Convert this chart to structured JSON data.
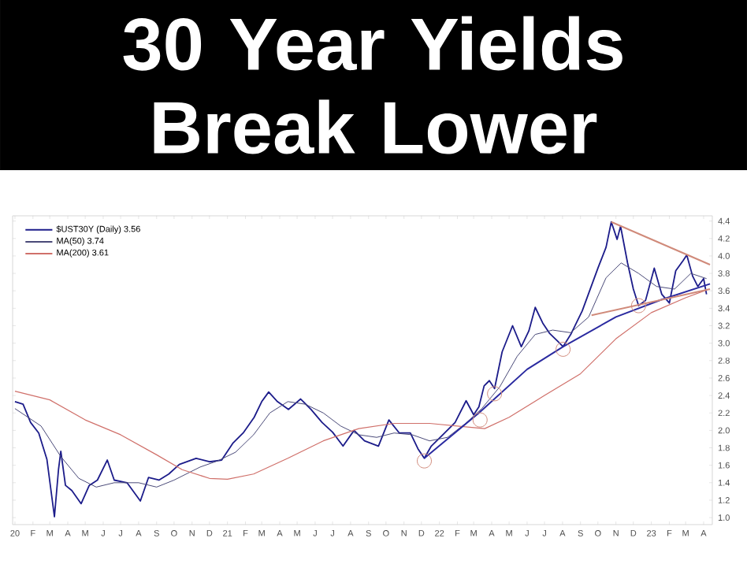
{
  "chart_data": {
    "type": "line",
    "title": "30 Year Yields Break Lower",
    "xlim": [
      "2019-12-28",
      "2023-04-16"
    ],
    "ylim": [
      0.92,
      4.46
    ],
    "xticks": [
      {
        "value": "2020-01-01",
        "label": "20"
      },
      {
        "value": "2020-02-01",
        "label": "F"
      },
      {
        "value": "2020-03-01",
        "label": "M"
      },
      {
        "value": "2020-04-01",
        "label": "A"
      },
      {
        "value": "2020-05-01",
        "label": "M"
      },
      {
        "value": "2020-06-01",
        "label": "J"
      },
      {
        "value": "2020-07-01",
        "label": "J"
      },
      {
        "value": "2020-08-01",
        "label": "A"
      },
      {
        "value": "2020-09-01",
        "label": "S"
      },
      {
        "value": "2020-10-01",
        "label": "O"
      },
      {
        "value": "2020-11-01",
        "label": "N"
      },
      {
        "value": "2020-12-01",
        "label": "D"
      },
      {
        "value": "2021-01-01",
        "label": "21"
      },
      {
        "value": "2021-02-01",
        "label": "F"
      },
      {
        "value": "2021-03-01",
        "label": "M"
      },
      {
        "value": "2021-04-01",
        "label": "A"
      },
      {
        "value": "2021-05-01",
        "label": "M"
      },
      {
        "value": "2021-06-01",
        "label": "J"
      },
      {
        "value": "2021-07-01",
        "label": "J"
      },
      {
        "value": "2021-08-01",
        "label": "A"
      },
      {
        "value": "2021-09-01",
        "label": "S"
      },
      {
        "value": "2021-10-01",
        "label": "O"
      },
      {
        "value": "2021-11-01",
        "label": "N"
      },
      {
        "value": "2021-12-01",
        "label": "D"
      },
      {
        "value": "2022-01-01",
        "label": "22"
      },
      {
        "value": "2022-02-01",
        "label": "F"
      },
      {
        "value": "2022-03-01",
        "label": "M"
      },
      {
        "value": "2022-04-01",
        "label": "A"
      },
      {
        "value": "2022-05-01",
        "label": "M"
      },
      {
        "value": "2022-06-01",
        "label": "J"
      },
      {
        "value": "2022-07-01",
        "label": "J"
      },
      {
        "value": "2022-08-01",
        "label": "A"
      },
      {
        "value": "2022-09-01",
        "label": "S"
      },
      {
        "value": "2022-10-01",
        "label": "O"
      },
      {
        "value": "2022-11-01",
        "label": "N"
      },
      {
        "value": "2022-12-01",
        "label": "D"
      },
      {
        "value": "2023-01-01",
        "label": "23"
      },
      {
        "value": "2023-02-01",
        "label": "F"
      },
      {
        "value": "2023-03-01",
        "label": "M"
      },
      {
        "value": "2023-04-01",
        "label": "A"
      }
    ],
    "yticks": [
      {
        "value": 1,
        "label": "1.0"
      },
      1.2,
      1.4,
      1.6,
      1.8,
      {
        "value": 2,
        "label": "2.0"
      },
      2.2,
      2.4,
      2.6,
      2.8,
      {
        "value": 3,
        "label": "3.0"
      },
      3.2,
      3.4,
      3.6,
      3.8,
      {
        "value": 4,
        "label": "4.0"
      },
      4.2,
      4.4
    ],
    "legend": "top left",
    "series": [
      {
        "name": "$UST30Y (Daily) 3.56",
        "color": "#1c1c8a",
        "x": [
          "2020-01-01",
          "2020-01-15",
          "2020-01-28",
          "2020-02-11",
          "2020-02-25",
          "2020-03-09",
          "2020-03-16",
          "2020-03-20",
          "2020-03-28",
          "2020-04-08",
          "2020-04-24",
          "2020-05-08",
          "2020-05-22",
          "2020-06-08",
          "2020-06-20",
          "2020-07-12",
          "2020-08-04",
          "2020-08-18",
          "2020-09-05",
          "2020-09-22",
          "2020-10-10",
          "2020-11-08",
          "2020-12-01",
          "2020-12-22",
          "2021-01-10",
          "2021-01-28",
          "2021-02-16",
          "2021-03-01",
          "2021-03-13",
          "2021-03-28",
          "2021-04-16",
          "2021-05-07",
          "2021-05-25",
          "2021-06-13",
          "2021-07-01",
          "2021-07-19",
          "2021-08-07",
          "2021-08-25",
          "2021-09-18",
          "2021-10-06",
          "2021-10-24",
          "2021-11-12",
          "2021-11-25",
          "2021-12-06",
          "2021-12-18",
          "2022-01-10",
          "2022-01-28",
          "2022-02-16",
          "2022-03-01",
          "2022-03-10",
          "2022-03-19",
          "2022-03-28",
          "2022-04-06",
          "2022-04-19",
          "2022-05-07",
          "2022-05-22",
          "2022-06-04",
          "2022-06-15",
          "2022-06-28",
          "2022-07-10",
          "2022-07-24",
          "2022-08-02",
          "2022-08-16",
          "2022-09-04",
          "2022-10-01",
          "2022-10-15",
          "2022-10-24",
          "2022-11-03",
          "2022-11-09",
          "2022-11-21",
          "2022-12-01",
          "2022-12-10",
          "2022-12-22",
          "2023-01-06",
          "2023-01-19",
          "2023-02-01",
          "2023-02-12",
          "2023-02-25",
          "2023-03-03",
          "2023-03-13",
          "2023-03-22",
          "2023-04-01",
          "2023-04-06"
        ],
        "values": [
          2.33,
          2.3,
          2.09,
          1.97,
          1.67,
          1.01,
          1.55,
          1.76,
          1.37,
          1.31,
          1.16,
          1.37,
          1.43,
          1.66,
          1.43,
          1.4,
          1.19,
          1.46,
          1.43,
          1.5,
          1.61,
          1.68,
          1.64,
          1.66,
          1.85,
          1.97,
          2.15,
          2.33,
          2.44,
          2.33,
          2.24,
          2.36,
          2.24,
          2.09,
          1.98,
          1.82,
          2.0,
          1.88,
          1.82,
          2.12,
          1.97,
          1.97,
          1.79,
          1.68,
          1.82,
          1.97,
          2.09,
          2.34,
          2.18,
          2.27,
          2.51,
          2.57,
          2.48,
          2.9,
          3.2,
          2.96,
          3.14,
          3.41,
          3.23,
          3.11,
          3.02,
          2.96,
          3.11,
          3.37,
          3.86,
          4.1,
          4.39,
          4.19,
          4.34,
          3.92,
          3.62,
          3.43,
          3.49,
          3.86,
          3.56,
          3.46,
          3.83,
          3.95,
          4.01,
          3.77,
          3.65,
          3.74,
          3.56
        ]
      },
      {
        "name": "MA(50) 3.74",
        "color": "#4a4a78",
        "x": [
          "2020-01-01",
          "2020-02-15",
          "2020-03-20",
          "2020-04-20",
          "2020-05-20",
          "2020-06-20",
          "2020-08-01",
          "2020-09-01",
          "2020-10-01",
          "2020-11-15",
          "2020-12-15",
          "2021-01-15",
          "2021-02-15",
          "2021-03-15",
          "2021-04-15",
          "2021-05-15",
          "2021-06-15",
          "2021-07-15",
          "2021-08-15",
          "2021-09-15",
          "2021-10-15",
          "2021-11-15",
          "2021-12-15",
          "2022-01-15",
          "2022-02-15",
          "2022-03-15",
          "2022-04-15",
          "2022-05-15",
          "2022-06-15",
          "2022-07-15",
          "2022-08-15",
          "2022-09-15",
          "2022-10-15",
          "2022-11-10",
          "2022-12-10",
          "2023-01-10",
          "2023-02-10",
          "2023-03-10",
          "2023-04-06"
        ],
        "values": [
          2.25,
          2.05,
          1.7,
          1.45,
          1.35,
          1.4,
          1.4,
          1.35,
          1.43,
          1.58,
          1.65,
          1.75,
          1.95,
          2.2,
          2.33,
          2.3,
          2.2,
          2.05,
          1.95,
          1.92,
          1.97,
          1.95,
          1.88,
          1.92,
          2.08,
          2.25,
          2.5,
          2.85,
          3.1,
          3.15,
          3.12,
          3.3,
          3.75,
          3.92,
          3.8,
          3.65,
          3.62,
          3.8,
          3.74
        ]
      },
      {
        "name": "MA(200) 3.61",
        "color": "#d0706a",
        "x": [
          "2020-01-01",
          "2020-03-01",
          "2020-05-01",
          "2020-07-01",
          "2020-09-01",
          "2020-10-15",
          "2020-12-01",
          "2021-01-01",
          "2021-02-15",
          "2021-04-15",
          "2021-06-15",
          "2021-08-15",
          "2021-10-15",
          "2021-12-15",
          "2022-02-15",
          "2022-03-20",
          "2022-05-01",
          "2022-07-01",
          "2022-09-01",
          "2022-11-01",
          "2023-01-01",
          "2023-03-01",
          "2023-04-06"
        ],
        "values": [
          2.45,
          2.35,
          2.12,
          1.95,
          1.72,
          1.55,
          1.45,
          1.44,
          1.5,
          1.68,
          1.88,
          2.02,
          2.08,
          2.08,
          2.04,
          2.02,
          2.15,
          2.4,
          2.65,
          3.05,
          3.35,
          3.52,
          3.61
        ]
      },
      {
        "type": "line",
        "color": "#2a2aa0",
        "x": [
          "2021-12-06",
          "2022-03-10",
          "2022-06-01",
          "2022-08-02",
          "2022-11-01",
          "2023-01-19",
          "2023-04-12"
        ],
        "values": [
          1.68,
          2.2,
          2.7,
          2.96,
          3.3,
          3.5,
          3.68
        ]
      },
      {
        "type": "line",
        "color": "#d08a7a",
        "x": [
          "2022-10-24",
          "2023-04-12"
        ],
        "values": [
          4.39,
          3.9
        ]
      },
      {
        "type": "line",
        "color": "#d08a7a",
        "x": [
          "2022-09-20",
          "2023-04-12"
        ],
        "values": [
          3.32,
          3.62
        ]
      },
      {
        "type": "scatter",
        "marker": "circle",
        "color": "#d08a7a",
        "x": [
          "2021-12-06",
          "2022-03-12",
          "2022-04-06",
          "2022-08-02",
          "2022-12-10"
        ],
        "values": [
          1.65,
          2.12,
          2.42,
          2.93,
          3.43
        ]
      }
    ]
  }
}
